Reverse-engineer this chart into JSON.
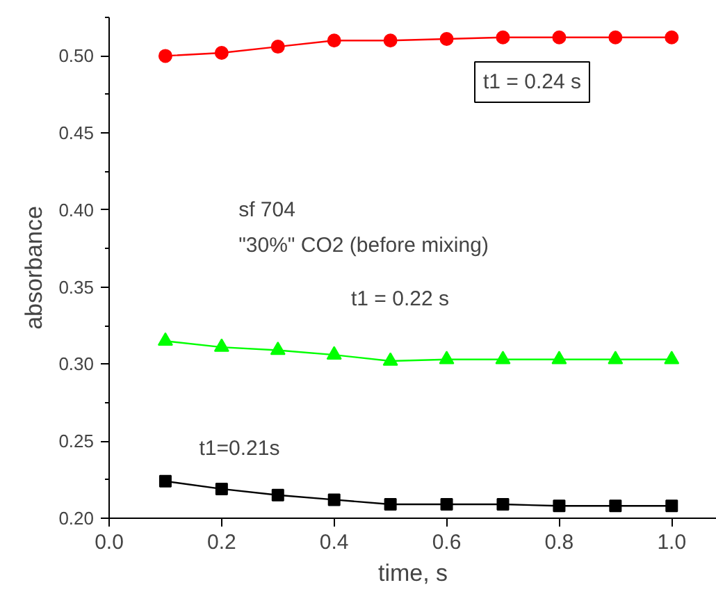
{
  "chart_data": {
    "type": "line",
    "xlabel": "time, s",
    "ylabel": "absorbance",
    "x": [
      0.1,
      0.2,
      0.3,
      0.4,
      0.5,
      0.6,
      0.7,
      0.8,
      0.9,
      1.0
    ],
    "series": [
      {
        "color": "#ff0000",
        "marker": "circle",
        "values": [
          0.5,
          0.502,
          0.506,
          0.51,
          0.51,
          0.511,
          0.512,
          0.512,
          0.512,
          0.512
        ]
      },
      {
        "color": "#00ff00",
        "marker": "triangle",
        "values": [
          0.315,
          0.311,
          0.309,
          0.306,
          0.302,
          0.303,
          0.303,
          0.303,
          0.303,
          0.303
        ]
      },
      {
        "color": "#000000",
        "marker": "square",
        "values": [
          0.224,
          0.219,
          0.215,
          0.212,
          0.209,
          0.209,
          0.209,
          0.208,
          0.208,
          0.208
        ]
      }
    ],
    "xlim": [
      0.0,
      1.08
    ],
    "xticks": [
      {
        "value": 0.0,
        "label": "0.0"
      },
      {
        "value": 0.2,
        "label": "0.2"
      },
      {
        "value": 0.4,
        "label": "0.4"
      },
      {
        "value": 0.6,
        "label": "0.6"
      },
      {
        "value": 0.8,
        "label": "0.8"
      },
      {
        "value": 1.0,
        "label": "1.0"
      }
    ],
    "ylim": [
      0.2,
      0.525
    ],
    "yticks": [
      {
        "value": 0.2,
        "label": "0.20"
      },
      {
        "value": 0.25,
        "label": "0.25"
      },
      {
        "value": 0.3,
        "label": "0.30"
      },
      {
        "value": 0.35,
        "label": "0.35"
      },
      {
        "value": 0.4,
        "label": "0.40"
      },
      {
        "value": 0.45,
        "label": "0.45"
      },
      {
        "value": 0.5,
        "label": "0.50"
      }
    ],
    "grid": false,
    "line_style": "solid",
    "annotations": [
      "t1 = 0.24 s",
      "sf 704",
      "\"30%\" CO2 (before mixing)",
      "t1 = 0.22 s",
      "t1=0.21s"
    ]
  }
}
